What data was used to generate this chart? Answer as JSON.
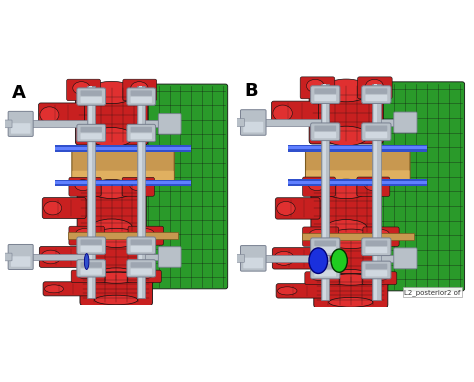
{
  "figure_width": 4.74,
  "figure_height": 3.82,
  "dpi": 100,
  "background_color": "#ffffff",
  "label_A": "A",
  "label_B": "B",
  "label_fontsize": 13,
  "label_fontweight": "bold",
  "watermark_text": "L2_posterior2 of",
  "watermark_fontsize": 5,
  "watermark_color": "#333333",
  "colors": {
    "white": [
      255,
      255,
      255
    ],
    "red_bright": [
      200,
      30,
      30
    ],
    "red_dark": [
      150,
      20,
      20
    ],
    "green_bright": [
      50,
      170,
      50
    ],
    "green_dark": [
      30,
      120,
      30
    ],
    "gray_light": [
      180,
      190,
      200
    ],
    "gray_mid": [
      150,
      160,
      170
    ],
    "gray_dark": [
      100,
      110,
      120
    ],
    "blue": [
      60,
      80,
      200
    ],
    "tan": [
      180,
      140,
      80
    ],
    "black": [
      20,
      20,
      20
    ],
    "blue_marker": [
      30,
      50,
      220
    ],
    "green_marker": [
      30,
      180,
      30
    ]
  }
}
